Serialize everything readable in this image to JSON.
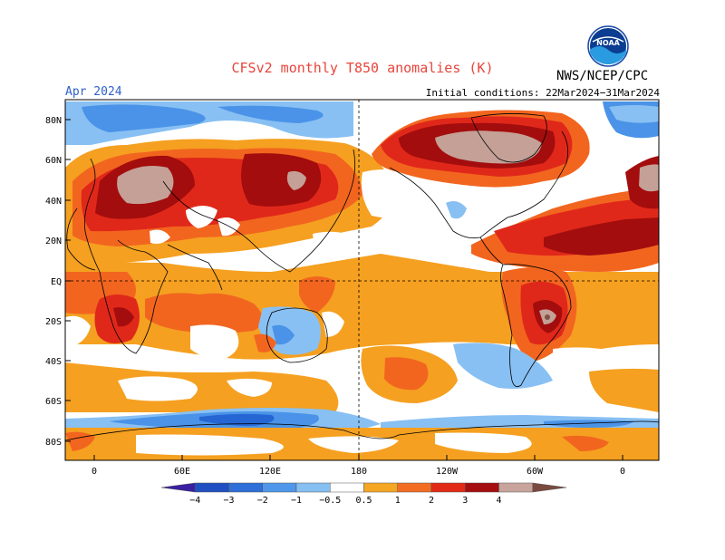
{
  "title": "CFSv2 monthly T850 anomalies (K)",
  "organization": "NWS/NCEP/CPC",
  "logo_text": "NOAA",
  "month_label": "Apr 2024",
  "initial_conditions": "Initial conditions: 22Mar2024−31Mar2024",
  "lat_labels": [
    "80N",
    "60N",
    "40N",
    "20N",
    "EQ",
    "20S",
    "40S",
    "60S",
    "80S"
  ],
  "lon_labels": [
    "0",
    "60E",
    "120E",
    "180",
    "120W",
    "60W",
    "0"
  ],
  "colorbar": {
    "labels": [
      "−4",
      "−3",
      "−2",
      "−1",
      "−0.5",
      "0.5",
      "1",
      "2",
      "3",
      "4"
    ],
    "colors": [
      "#3a1fa0",
      "#1f4fc0",
      "#2e6fd8",
      "#4f97ea",
      "#86bff2",
      "#ffffff",
      "#f5a623",
      "#f26d21",
      "#e22b16",
      "#a50f0f",
      "#c9a49c",
      "#7a4a3e"
    ]
  },
  "palette": {
    "c05": "#f5a020",
    "c1": "#f2651f",
    "c2": "#e0281a",
    "c3": "#a30d0d",
    "c4": "#c4a097",
    "c4plus": "#7d5247",
    "m05": "#88c0f3",
    "m1": "#4a93e8",
    "m2": "#2566d4"
  }
}
